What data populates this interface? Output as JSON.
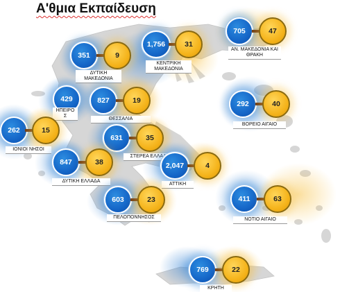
{
  "title": "Α'θμια Εκπαίδευση",
  "colors": {
    "blue_circle": "#1566c8",
    "gold_circle": "#f5b41c",
    "connector": "#6b3a17",
    "land": "#d9d9d9"
  },
  "regions": [
    {
      "id": "anmak",
      "blue": "705",
      "gold": "47",
      "label": "ΑΝ. ΜΑΚΕΔΟΝΙΑ ΚΑΙ ΘΡΑΚΗ"
    },
    {
      "id": "dmak",
      "blue": "351",
      "gold": "9",
      "label": "ΔΥΤΙΚΗ ΜΑΚΕΔΟΝΙΑ"
    },
    {
      "id": "kmak",
      "blue": "1,756",
      "gold": "31",
      "label": "ΚΕΝΤΡΙΚΗ ΜΑΚΕΔΟΝΙΑ"
    },
    {
      "id": "ipeiros",
      "blue": "429",
      "gold": "",
      "label": "ΗΠΕΙΡΟ Σ"
    },
    {
      "id": "thessalia",
      "blue": "827",
      "gold": "19",
      "label": "ΘΕΣΣΑΛΙΑ"
    },
    {
      "id": "vaigaio",
      "blue": "292",
      "gold": "40",
      "label": "ΒΟΡΕΙΟ ΑΙΓΑΙΟ"
    },
    {
      "id": "ionia",
      "blue": "262",
      "gold": "15",
      "label": "ΙΟΝΙΟΙ ΝΗΣΟΙ"
    },
    {
      "id": "stellada",
      "blue": "631",
      "gold": "35",
      "label": "ΣΤΕΡΕΑ ΕΛΛΑΔΑ"
    },
    {
      "id": "dellada",
      "blue": "847",
      "gold": "38",
      "label": "ΔΥΤΙΚΗ ΕΛΛΑΔΑ"
    },
    {
      "id": "attiki",
      "blue": "2,047",
      "gold": "4",
      "label": "ΑΤΤΙΚΗ"
    },
    {
      "id": "peloponnisos",
      "blue": "603",
      "gold": "23",
      "label": "ΠΕΛΟΠΟΝΝΗΣΟΣ"
    },
    {
      "id": "naigaio",
      "blue": "411",
      "gold": "63",
      "label": "ΝΟΤΙΟ ΑΙΓΑΙΟ"
    },
    {
      "id": "kriti",
      "blue": "769",
      "gold": "22",
      "label": "ΚΡΗΤΗ"
    }
  ]
}
